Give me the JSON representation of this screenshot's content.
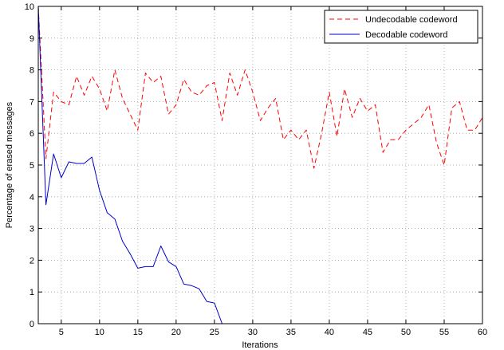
{
  "chart_data": {
    "type": "line",
    "xlabel": "Iterations",
    "ylabel": "Percentage of erased messages",
    "xlim": [
      2,
      60
    ],
    "ylim": [
      0,
      10
    ],
    "xticks": [
      5,
      10,
      15,
      20,
      25,
      30,
      35,
      40,
      45,
      50,
      55,
      60
    ],
    "yticks": [
      0,
      1,
      2,
      3,
      4,
      5,
      6,
      7,
      8,
      9,
      10
    ],
    "grid": true,
    "legend_position": "top-right",
    "series": [
      {
        "name": "Undecodable codeword",
        "color": "#ff0000",
        "style": "dashed",
        "x": [
          2,
          3,
          4,
          5,
          6,
          7,
          8,
          9,
          10,
          11,
          12,
          13,
          14,
          15,
          16,
          17,
          18,
          19,
          20,
          21,
          22,
          23,
          24,
          25,
          26,
          27,
          28,
          29,
          30,
          31,
          32,
          33,
          34,
          35,
          36,
          37,
          38,
          39,
          40,
          41,
          42,
          43,
          44,
          45,
          46,
          47,
          48,
          49,
          50,
          51,
          52,
          53,
          54,
          55,
          56,
          57,
          58,
          59,
          60
        ],
        "y": [
          10,
          5.2,
          7.3,
          7.0,
          6.9,
          7.8,
          7.2,
          7.8,
          7.4,
          6.7,
          8.0,
          7.1,
          6.6,
          6.1,
          7.9,
          7.6,
          7.8,
          6.6,
          6.9,
          7.7,
          7.3,
          7.2,
          7.5,
          7.6,
          6.4,
          7.9,
          7.2,
          8.0,
          7.3,
          6.4,
          6.8,
          7.1,
          5.8,
          6.1,
          5.8,
          6.1,
          4.9,
          6.0,
          7.3,
          5.9,
          7.4,
          6.5,
          7.1,
          6.7,
          6.9,
          5.4,
          5.8,
          5.8,
          6.1,
          6.3,
          6.5,
          6.9,
          5.7,
          5.0,
          6.8,
          7.0,
          6.1,
          6.1,
          6.5
        ]
      },
      {
        "name": "Decodable codeword",
        "color": "#0000cc",
        "style": "solid",
        "x": [
          2,
          3,
          4,
          5,
          6,
          7,
          8,
          9,
          10,
          11,
          12,
          13,
          14,
          15,
          16,
          17,
          18,
          19,
          20,
          21,
          22,
          23,
          24,
          25,
          26,
          27,
          28,
          29,
          30,
          31,
          32,
          33,
          34,
          35,
          36,
          37,
          38,
          39,
          40,
          41,
          42,
          43,
          44,
          45,
          46,
          47,
          48,
          49,
          50,
          51,
          52,
          53,
          54,
          55,
          56,
          57,
          58,
          59,
          60
        ],
        "y": [
          10,
          3.75,
          5.35,
          4.6,
          5.1,
          5.05,
          5.05,
          5.25,
          4.2,
          3.5,
          3.3,
          2.6,
          2.2,
          1.75,
          1.8,
          1.8,
          2.45,
          1.95,
          1.8,
          1.25,
          1.2,
          1.1,
          0.7,
          0.65,
          0,
          0,
          0,
          0,
          0,
          0,
          0,
          0,
          0,
          0,
          0,
          0,
          0,
          0,
          0,
          0,
          0,
          0,
          0,
          0,
          0,
          0,
          0,
          0,
          0,
          0,
          0,
          0,
          0,
          0,
          0,
          0,
          0,
          0,
          0
        ]
      }
    ]
  }
}
